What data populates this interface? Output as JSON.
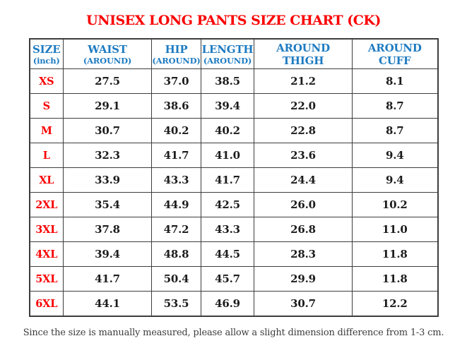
{
  "page": {
    "title": "UNISEX LONG PANTS SIZE CHART (CK)",
    "footnote": "Since the size is manually measured, please allow a slight dimension difference from 1-3 cm."
  },
  "colors": {
    "title_red": "#fa0000",
    "header_blue": "#1e7bc1",
    "value_black": "#1c1c1c",
    "border_gray": "#3d3d3d",
    "footnote_gray": "#3c3c3c",
    "background": "#ffffff"
  },
  "table": {
    "header": {
      "columns": [
        {
          "line1": "SIZE",
          "line2": "(inch)"
        },
        {
          "line1": "WAIST",
          "line2": "(AROUND)"
        },
        {
          "line1": "HIP",
          "line2": "(AROUND)"
        },
        {
          "line1": "LENGTH",
          "line2": "(AROUND)"
        },
        {
          "line1": "AROUND",
          "line2": "THIGH"
        },
        {
          "line1": "AROUND",
          "line2": "CUFF"
        }
      ]
    },
    "rows": [
      {
        "size": "XS",
        "values": [
          "27.5",
          "37.0",
          "38.5",
          "21.2",
          "8.1"
        ]
      },
      {
        "size": "S",
        "values": [
          "29.1",
          "38.6",
          "39.4",
          "22.0",
          "8.7"
        ]
      },
      {
        "size": "M",
        "values": [
          "30.7",
          "40.2",
          "40.2",
          "22.8",
          "8.7"
        ]
      },
      {
        "size": "L",
        "values": [
          "32.3",
          "41.7",
          "41.0",
          "23.6",
          "9.4"
        ]
      },
      {
        "size": "XL",
        "values": [
          "33.9",
          "43.3",
          "41.7",
          "24.4",
          "9.4"
        ]
      },
      {
        "size": "2XL",
        "values": [
          "35.4",
          "44.9",
          "42.5",
          "26.0",
          "10.2"
        ]
      },
      {
        "size": "3XL",
        "values": [
          "37.8",
          "47.2",
          "43.3",
          "26.8",
          "11.0"
        ]
      },
      {
        "size": "4XL",
        "values": [
          "39.4",
          "48.8",
          "44.5",
          "28.3",
          "11.8"
        ]
      },
      {
        "size": "5XL",
        "values": [
          "41.7",
          "50.4",
          "45.7",
          "29.9",
          "11.8"
        ]
      },
      {
        "size": "6XL",
        "values": [
          "44.1",
          "53.5",
          "46.9",
          "30.7",
          "12.2"
        ]
      }
    ]
  }
}
